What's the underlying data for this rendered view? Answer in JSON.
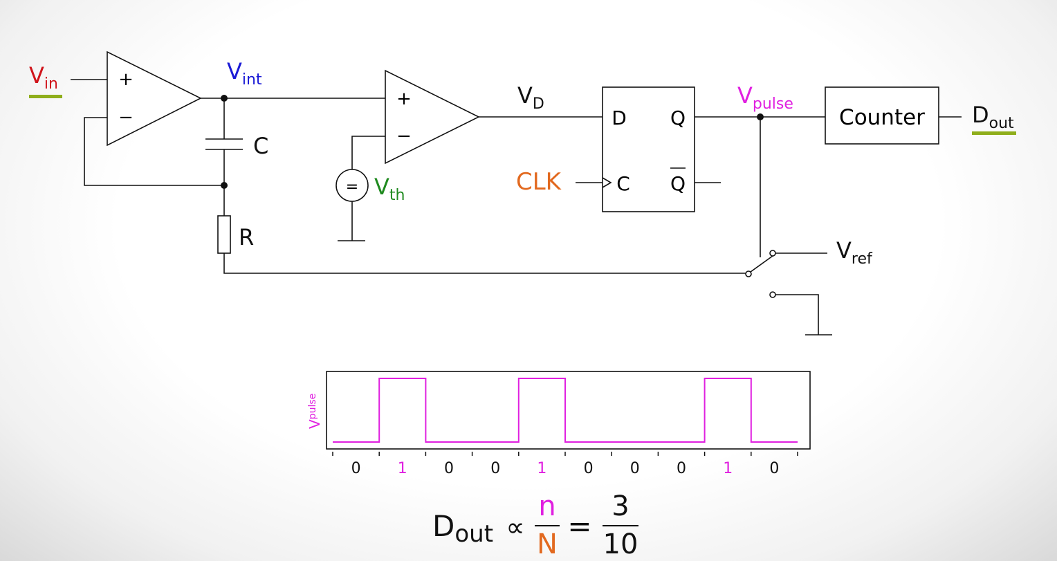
{
  "labels": {
    "vin": {
      "main": "V",
      "sub": "in"
    },
    "vint": {
      "main": "V",
      "sub": "int"
    },
    "vd": {
      "main": "V",
      "sub": "D"
    },
    "vpulse": {
      "main": "V",
      "sub": "pulse"
    },
    "vth": {
      "main": "V",
      "sub": "th"
    },
    "vref": {
      "main": "V",
      "sub": "ref"
    },
    "dout": {
      "main": "D",
      "sub": "out"
    },
    "capacitor": "C",
    "resistor": "R",
    "clk": "CLK",
    "counter": "Counter",
    "plus": "+",
    "minus": "−",
    "equals_source": "=",
    "ff_d": "D",
    "ff_q": "Q",
    "ff_c": "C",
    "ff_qbar": "Q"
  },
  "colors": {
    "vin": "#d0141b",
    "vint": "#1a1ad6",
    "vpulse": "#e020e0",
    "vth": "#1f8a1f",
    "clk": "#e2691f",
    "underline": "#8fae1b",
    "wire": "#111111"
  },
  "chart_data": {
    "type": "line",
    "ylabel": {
      "main": "V",
      "sub": "pulse"
    },
    "bits": [
      "0",
      "1",
      "0",
      "0",
      "1",
      "0",
      "0",
      "0",
      "1",
      "0"
    ]
  },
  "formula": {
    "lhs": {
      "main": "D",
      "sub": "out"
    },
    "prop": "∝",
    "num1": "n",
    "den1": "N",
    "eq": "=",
    "num2": "3",
    "den2": "10"
  }
}
